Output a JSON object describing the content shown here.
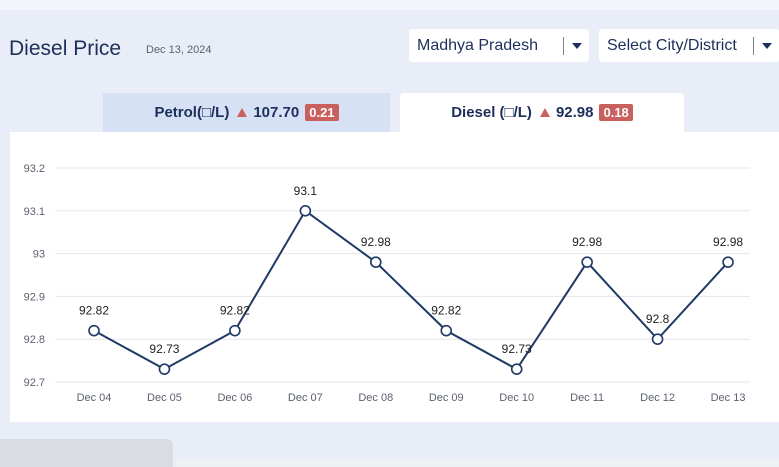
{
  "header": {
    "title": "Diesel Price",
    "date": "Dec 13, 2024"
  },
  "selects": {
    "state": "Madhya Pradesh",
    "city": "Select City/District"
  },
  "tabs": {
    "petrol": {
      "label": "Petrol(□/L)",
      "price": "107.70",
      "change": "0.21"
    },
    "diesel": {
      "label": "Diesel (□/L)",
      "price": "92.98",
      "change": "0.18"
    }
  },
  "colors": {
    "line": "#1f3a66",
    "marker_fill": "#ffffff",
    "grid": "#e4e6ea",
    "up_badge": "#c9605e",
    "active_tab": "#ffffff",
    "inactive_tab": "#d6e1f6"
  },
  "chart_data": {
    "type": "line",
    "categories": [
      "Dec 04",
      "Dec 05",
      "Dec 06",
      "Dec 07",
      "Dec 08",
      "Dec 09",
      "Dec 10",
      "Dec 11",
      "Dec 12",
      "Dec 13"
    ],
    "series": [
      {
        "values": [
          92.82,
          92.73,
          92.82,
          93.1,
          92.98,
          92.82,
          92.73,
          92.98,
          92.8,
          92.98
        ]
      }
    ],
    "data_labels": [
      "92.82",
      "92.73",
      "92.82",
      "93.1",
      "92.98",
      "92.82",
      "92.73",
      "92.98",
      "92.8",
      "92.98"
    ],
    "yticks": [
      92.7,
      92.8,
      92.9,
      93,
      93.1,
      93.2
    ],
    "ytick_labels": [
      "92.7",
      "92.8",
      "92.9",
      "93",
      "93.1",
      "93.2"
    ],
    "ylim": [
      92.7,
      93.2
    ],
    "grid": true,
    "legend": "none",
    "xlabel": "",
    "ylabel": ""
  }
}
